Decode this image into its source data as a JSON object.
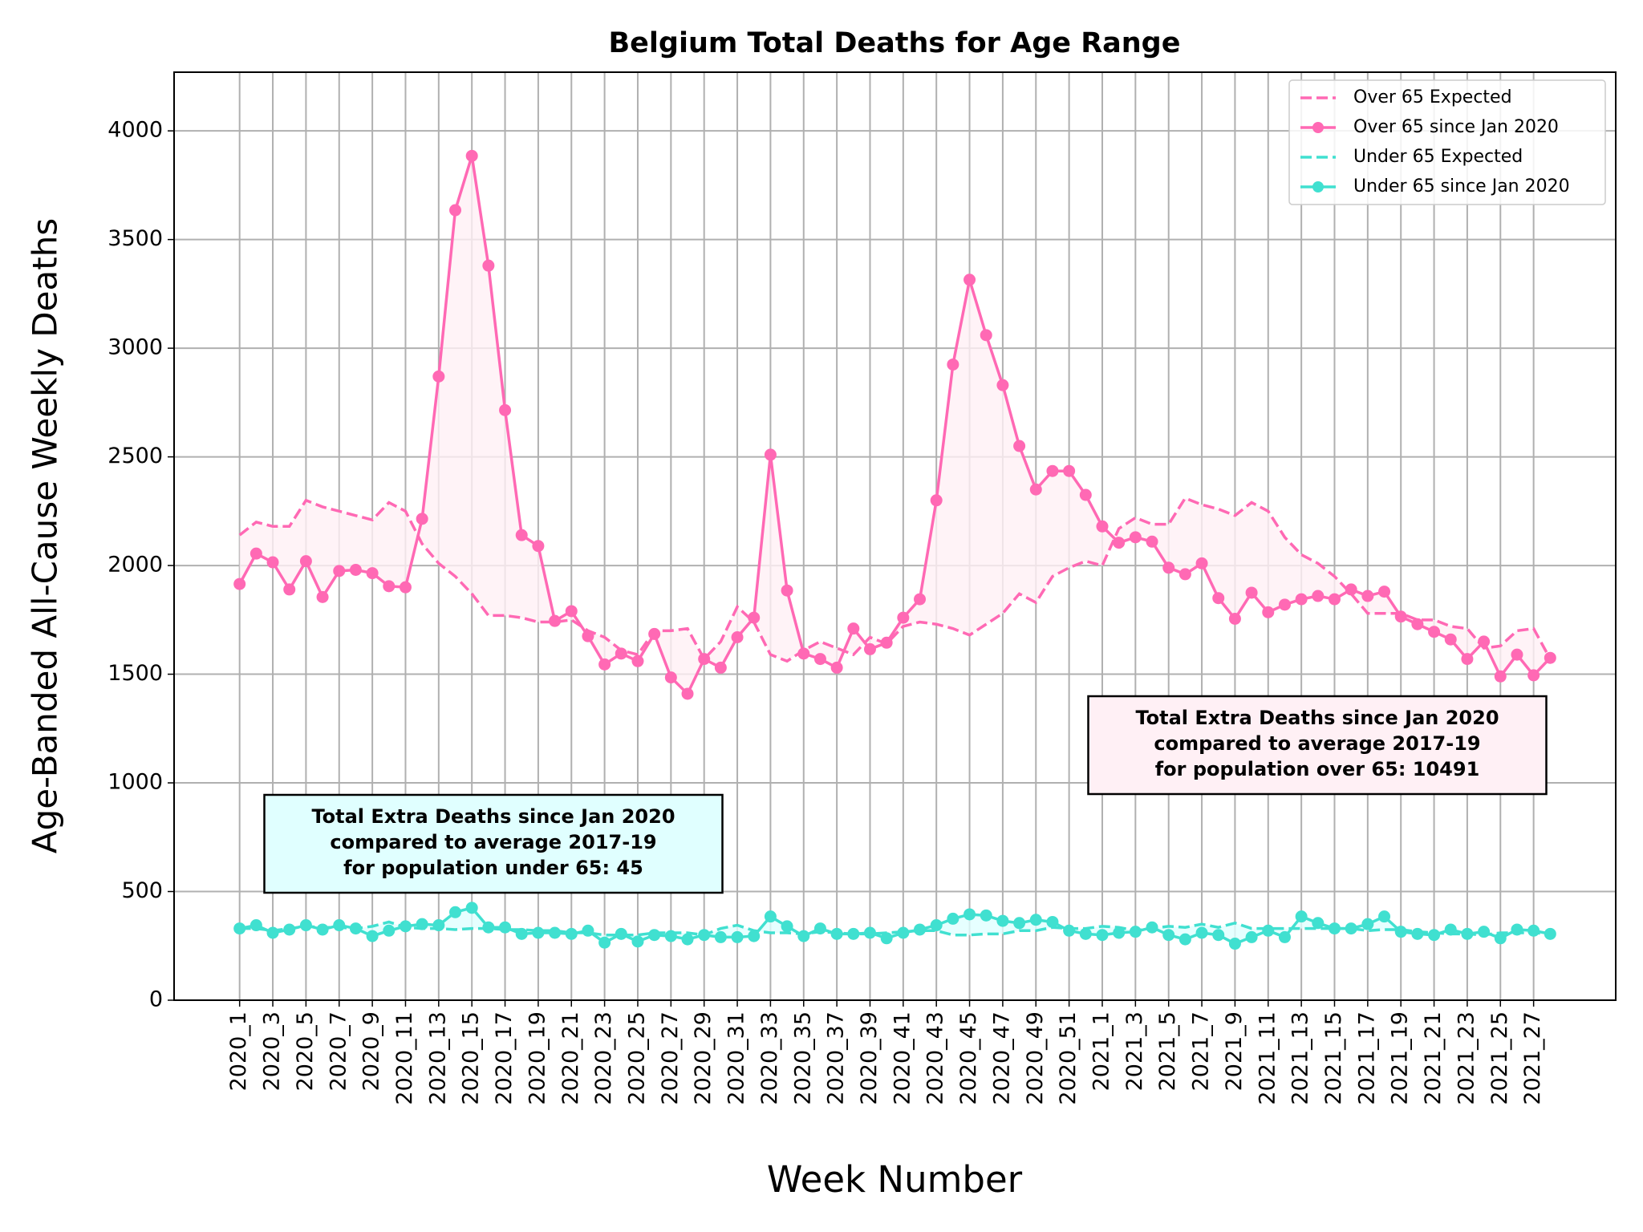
{
  "chart_data": {
    "type": "line",
    "title": "Belgium Total Deaths for Age Range",
    "x_label": "Week Number",
    "y_label": "Age-Banded All-Cause Weekly Deaths",
    "categories": [
      "2020_1",
      null,
      "2020_3",
      null,
      "2020_5",
      null,
      "2020_7",
      null,
      "2020_9",
      null,
      "2020_11",
      null,
      "2020_13",
      null,
      "2020_15",
      null,
      "2020_17",
      null,
      "2020_19",
      null,
      "2020_21",
      null,
      "2020_23",
      null,
      "2020_25",
      null,
      "2020_27",
      null,
      "2020_29",
      null,
      "2020_31",
      null,
      "2020_33",
      null,
      "2020_35",
      null,
      "2020_37",
      null,
      "2020_39",
      null,
      "2020_41",
      null,
      "2020_43",
      null,
      "2020_45",
      null,
      "2020_47",
      null,
      "2020_49",
      null,
      "2020_51",
      null,
      "2021_1",
      null,
      "2021_3",
      null,
      "2021_5",
      null,
      "2021_7",
      null,
      "2021_9",
      null,
      "2021_11",
      null,
      "2021_13",
      null,
      "2021_15",
      null,
      "2021_17",
      null,
      "2021_19",
      null,
      "2021_21",
      null,
      "2021_23",
      null,
      "2021_25",
      null,
      "2021_27",
      null
    ],
    "ylim": [
      0,
      4270
    ],
    "yticks": [
      0,
      500,
      1000,
      1500,
      2000,
      2500,
      3000,
      3500,
      4000
    ],
    "grid": true,
    "legend": "upper right",
    "series": [
      {
        "name": "Over 65 Expected",
        "color": "#ff69b4",
        "linestyle": "dashed",
        "marker": false,
        "values": [
          2140,
          2200,
          2180,
          2180,
          2300,
          2270,
          2250,
          2230,
          2210,
          2290,
          2250,
          2100,
          2010,
          1950,
          1870,
          1770,
          1770,
          1760,
          1740,
          1740,
          1750,
          1700,
          1670,
          1610,
          1590,
          1700,
          1700,
          1710,
          1570,
          1650,
          1810,
          1740,
          1590,
          1560,
          1610,
          1650,
          1620,
          1590,
          1670,
          1640,
          1720,
          1740,
          1730,
          1710,
          1680,
          1730,
          1780,
          1870,
          1830,
          1950,
          1990,
          2020,
          2000,
          2170,
          2220,
          2190,
          2190,
          2310,
          2280,
          2260,
          2230,
          2290,
          2250,
          2130,
          2050,
          2010,
          1950,
          1870,
          1780,
          1780,
          1780,
          1750,
          1750,
          1720,
          1710,
          1620,
          1630,
          1700,
          1710,
          1570
        ]
      },
      {
        "name": "Over 65 since Jan 2020",
        "color": "#ff69b4",
        "linestyle": "solid",
        "marker": true,
        "fill_against": 0,
        "fill_color": "#fff0f5",
        "values": [
          1915,
          2055,
          2015,
          1890,
          2020,
          1855,
          1975,
          1980,
          1965,
          1905,
          1900,
          2215,
          2870,
          3635,
          3885,
          3380,
          2715,
          2140,
          2090,
          1745,
          1790,
          1675,
          1545,
          1595,
          1560,
          1685,
          1485,
          1410,
          1570,
          1530,
          1670,
          1760,
          2510,
          1885,
          1595,
          1570,
          1530,
          1710,
          1615,
          1645,
          1760,
          1845,
          2300,
          2925,
          3315,
          3060,
          2830,
          2550,
          2350,
          2435,
          2435,
          2325,
          2180,
          2105,
          2130,
          2110,
          1990,
          1960,
          2010,
          1850,
          1755,
          1875,
          1785,
          1820,
          1845,
          1860,
          1845,
          1890,
          1860,
          1880,
          1765,
          1730,
          1695,
          1660,
          1570,
          1650,
          1490,
          1590,
          1495,
          1575
        ]
      },
      {
        "name": "Under 65 Expected",
        "color": "#40e0d0",
        "linestyle": "dashed",
        "marker": false,
        "values": [
          330,
          330,
          320,
          330,
          340,
          335,
          335,
          330,
          340,
          360,
          335,
          330,
          330,
          325,
          330,
          330,
          325,
          325,
          320,
          320,
          310,
          310,
          300,
          300,
          300,
          310,
          310,
          310,
          300,
          330,
          345,
          320,
          310,
          310,
          305,
          315,
          310,
          305,
          305,
          310,
          315,
          320,
          320,
          300,
          300,
          305,
          305,
          320,
          320,
          335,
          330,
          330,
          340,
          335,
          320,
          330,
          340,
          335,
          350,
          335,
          355,
          330,
          330,
          330,
          330,
          330,
          330,
          330,
          320,
          325,
          325,
          315,
          310,
          305,
          305,
          300,
          310,
          310,
          310,
          305
        ]
      },
      {
        "name": "Under 65 since Jan 2020",
        "color": "#40e0d0",
        "linestyle": "solid",
        "marker": true,
        "fill_against": 2,
        "fill_color": "#e0ffff",
        "values": [
          330,
          345,
          310,
          325,
          345,
          325,
          345,
          330,
          295,
          320,
          340,
          350,
          345,
          405,
          425,
          335,
          335,
          305,
          310,
          310,
          305,
          320,
          265,
          305,
          270,
          300,
          295,
          280,
          300,
          290,
          290,
          295,
          385,
          340,
          295,
          330,
          305,
          305,
          310,
          285,
          310,
          325,
          345,
          375,
          395,
          390,
          365,
          355,
          370,
          360,
          320,
          305,
          300,
          310,
          315,
          335,
          300,
          280,
          310,
          300,
          260,
          290,
          320,
          290,
          385,
          355,
          330,
          330,
          350,
          385,
          315,
          305,
          300,
          325,
          305,
          315,
          285,
          325,
          320,
          305
        ]
      }
    ],
    "annotations": [
      {
        "lines": [
          "Total Extra Deaths since Jan 2020",
          "compared to average 2017-19",
          "for population under 65: 45"
        ],
        "box_color": "#e0ffff"
      },
      {
        "lines": [
          "Total Extra Deaths since Jan 2020",
          "compared to average 2017-19",
          "for population over 65: 10491"
        ],
        "box_color": "#fff0f5"
      }
    ]
  }
}
